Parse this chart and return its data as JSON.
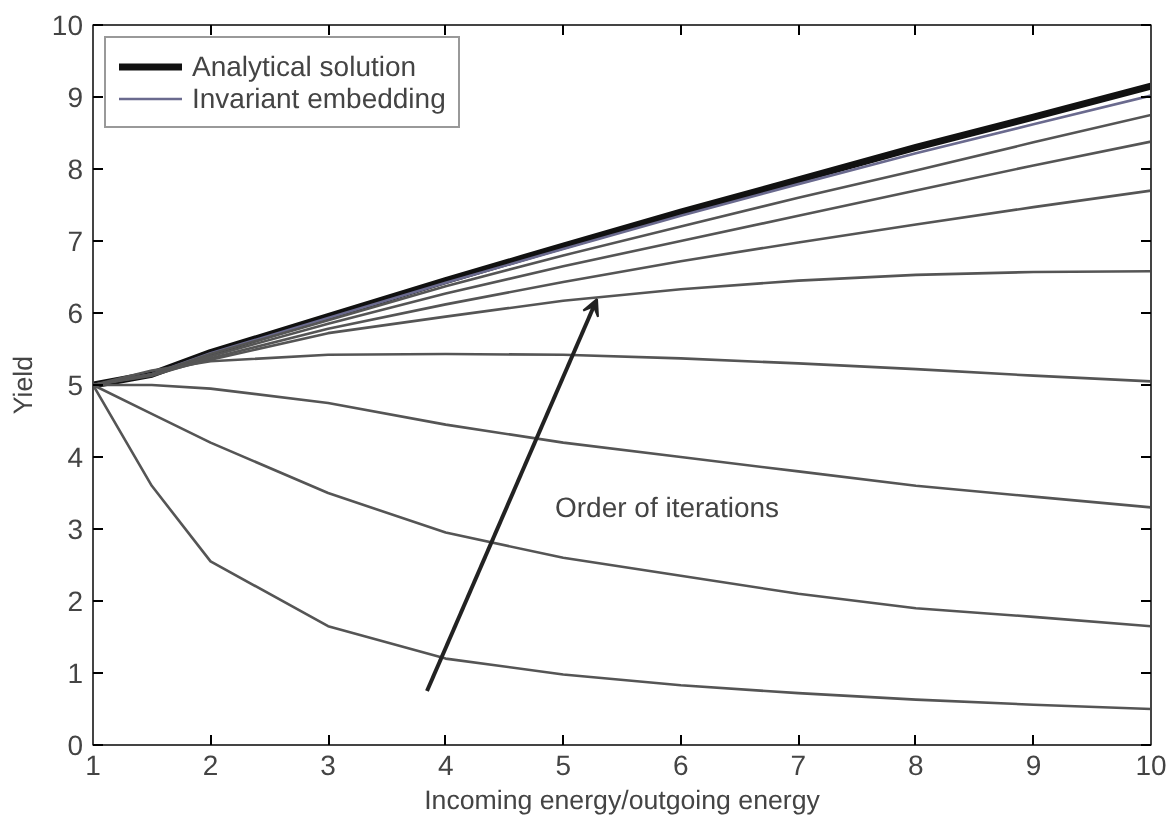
{
  "chart_data": {
    "type": "line",
    "xlabel": "Incoming energy/outgoing energy",
    "ylabel": "Yield",
    "x": [
      1,
      1.5,
      2,
      3,
      4,
      5,
      6,
      7,
      8,
      9,
      10
    ],
    "xlim": [
      1,
      10
    ],
    "xticks": [
      1,
      2,
      3,
      4,
      5,
      6,
      7,
      8,
      9,
      10
    ],
    "ylim": [
      0,
      10
    ],
    "yticks": [
      0,
      1,
      2,
      3,
      4,
      5,
      6,
      7,
      8,
      9,
      10
    ],
    "grid": false,
    "legend": "top left",
    "marker": "none",
    "line_style": "solid",
    "annotations": [
      "Order of iterations"
    ],
    "series": [
      {
        "name": "Analytical solution",
        "color": "#111111",
        "values": [
          5,
          5.15,
          5.45,
          5.95,
          6.45,
          6.93,
          7.4,
          7.85,
          8.3,
          8.72,
          9.15
        ]
      },
      {
        "name": "Invariant embedding",
        "color": "#6a6a8e",
        "values": [
          5,
          5.15,
          5.44,
          5.93,
          6.42,
          6.89,
          7.35,
          7.79,
          8.22,
          8.62,
          9.02
        ]
      },
      {
        "color": "#555555",
        "values": [
          5,
          5.15,
          5.43,
          5.9,
          6.37,
          6.8,
          7.2,
          7.6,
          7.98,
          8.37,
          8.75
        ]
      },
      {
        "color": "#555555",
        "values": [
          5,
          5.14,
          5.4,
          5.85,
          6.27,
          6.65,
          7.0,
          7.35,
          7.7,
          8.05,
          8.38
        ]
      },
      {
        "color": "#555555",
        "values": [
          5,
          5.13,
          5.37,
          5.78,
          6.12,
          6.43,
          6.72,
          6.98,
          7.23,
          7.47,
          7.7
        ]
      },
      {
        "color": "#555555",
        "values": [
          5,
          5.15,
          5.35,
          5.72,
          5.95,
          6.17,
          6.33,
          6.45,
          6.53,
          6.57,
          6.58
        ]
      },
      {
        "color": "#555555",
        "values": [
          5,
          5.2,
          5.33,
          5.42,
          5.43,
          5.42,
          5.37,
          5.3,
          5.22,
          5.13,
          5.05
        ]
      },
      {
        "color": "#555555",
        "values": [
          5,
          5.0,
          4.95,
          4.75,
          4.45,
          4.2,
          4.0,
          3.8,
          3.6,
          3.45,
          3.3
        ]
      },
      {
        "color": "#555555",
        "values": [
          5,
          4.6,
          4.2,
          3.5,
          2.95,
          2.6,
          2.35,
          2.1,
          1.9,
          1.78,
          1.65
        ]
      },
      {
        "color": "#555555",
        "values": [
          5,
          3.6,
          2.55,
          1.65,
          1.2,
          0.98,
          0.83,
          0.72,
          0.63,
          0.56,
          0.5
        ]
      }
    ]
  }
}
